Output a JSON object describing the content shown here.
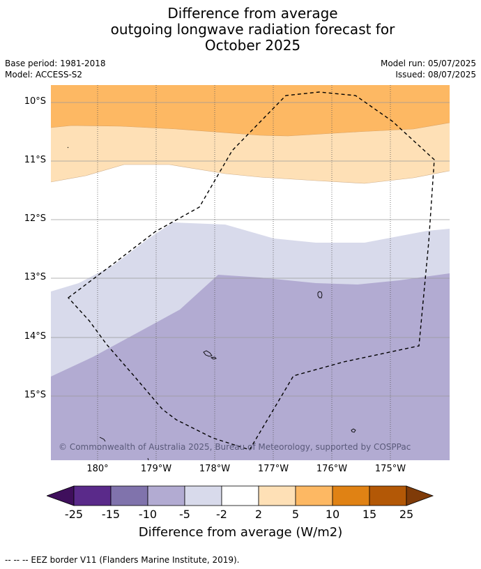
{
  "title": {
    "line1": "Difference from average",
    "line2": "outgoing longwave radiation forecast for",
    "line3": "October 2025"
  },
  "meta": {
    "base_period": "Base period: 1981-2018",
    "model": "Model: ACCESS-S2",
    "model_run": "Model run: 05/07/2025",
    "issued": "Issued: 08/07/2025"
  },
  "map": {
    "latitude_labels": [
      "10°S",
      "11°S",
      "12°S",
      "13°S",
      "14°S",
      "15°S"
    ],
    "longitude_labels": [
      "180°",
      "179°W",
      "178°W",
      "177°W",
      "176°W",
      "175°W"
    ],
    "copyright": "© Commonwealth of Australia 2025, Bureau of Meteorology, supported by COSPPac",
    "eez_line_style": "dashed black"
  },
  "colorbar": {
    "ticks": [
      "-25",
      "-15",
      "-10",
      "-5",
      "-2",
      "2",
      "5",
      "10",
      "15",
      "25"
    ],
    "colors": [
      "#3f0f5c",
      "#5a2a8a",
      "#8073ac",
      "#b2abd2",
      "#d8daeb",
      "#ffffff",
      "#fee0b6",
      "#fdb863",
      "#e08214",
      "#b35806",
      "#7f3b08"
    ],
    "label": "Difference from average (W/m2)"
  },
  "footnote": "--  --  -- EEZ border V11 (Flanders Marine Institute, 2019)."
}
